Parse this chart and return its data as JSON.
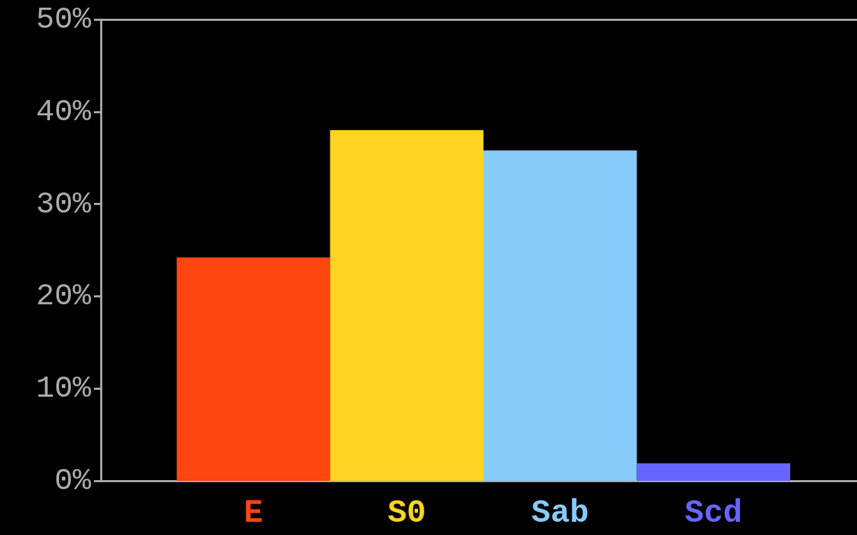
{
  "chart_data": {
    "type": "bar",
    "categories": [
      "E",
      "S0",
      "Sab",
      "Scd"
    ],
    "values": [
      24.2,
      38,
      35.8,
      1.9
    ],
    "colors": [
      "#ff4510",
      "#ffd324",
      "#87cbfb",
      "#6666ff"
    ],
    "ylim": [
      0,
      50
    ],
    "yticks": [
      {
        "value": 0,
        "label": "0%"
      },
      {
        "value": 10,
        "label": "10%"
      },
      {
        "value": 20,
        "label": "20%"
      },
      {
        "value": 30,
        "label": "30%"
      },
      {
        "value": 40,
        "label": "40%"
      },
      {
        "value": 50,
        "label": "50%"
      }
    ],
    "grid": false
  }
}
